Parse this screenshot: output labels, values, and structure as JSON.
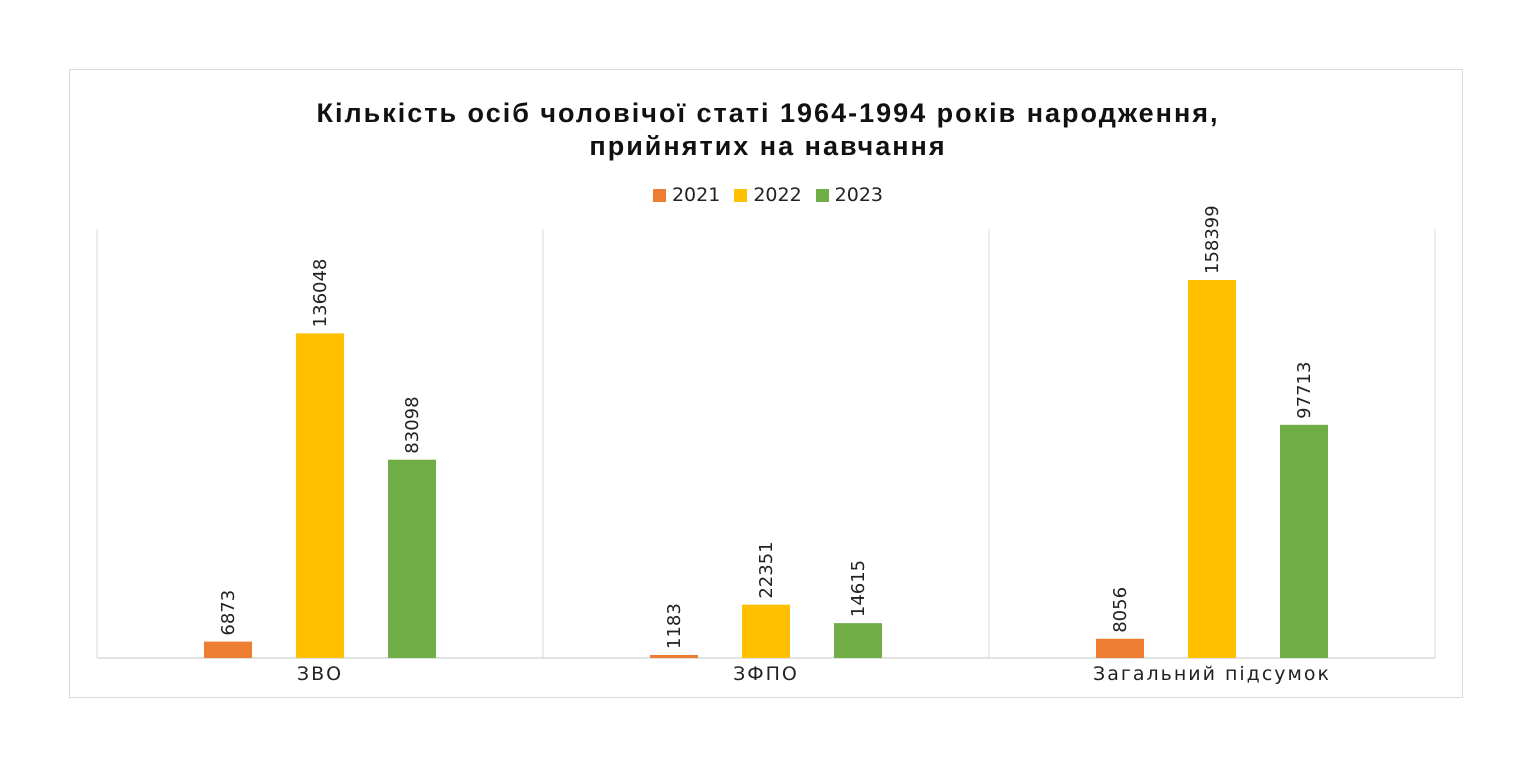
{
  "chart_data": {
    "type": "bar",
    "title_lines": [
      "Кількість осіб чоловічої статі 1964-1994 років народження,",
      "прийнятих на навчання"
    ],
    "categories": [
      "ЗВО",
      "ЗФПО",
      "Загальний підсумок"
    ],
    "series": [
      {
        "name": "2021",
        "color": "#ED7D31",
        "values": [
          6873,
          1183,
          8056
        ]
      },
      {
        "name": "2022",
        "color": "#FFC000",
        "values": [
          136048,
          22351,
          158399
        ]
      },
      {
        "name": "2023",
        "color": "#70AD47",
        "values": [
          83098,
          14615,
          97713
        ]
      }
    ],
    "ylim": [
      0,
      180000
    ],
    "grid": "vertical category separators",
    "legend_position": "top"
  }
}
